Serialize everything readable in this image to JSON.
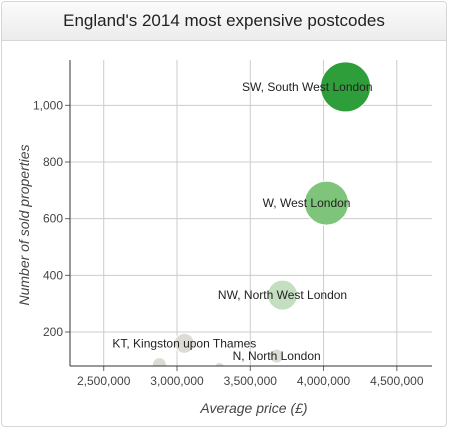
{
  "title": "England's 2014 most expensive postcodes",
  "chart_data": {
    "type": "scatter",
    "title": "England's 2014 most expensive postcodes",
    "xlabel": "Average price (£)",
    "ylabel": "Number of sold properties",
    "xlim": [
      2270000,
      4740000
    ],
    "ylim": [
      80,
      1160
    ],
    "x_ticks": [
      2500000,
      3000000,
      3500000,
      4000000,
      4500000
    ],
    "x_tick_labels": [
      "2,500,000",
      "3,000,000",
      "3,500,000",
      "4,000,000",
      "4,500,000"
    ],
    "y_ticks": [
      200,
      400,
      600,
      800,
      1000
    ],
    "y_tick_labels": [
      "200",
      "400",
      "600",
      "800",
      "1,000"
    ],
    "grid": true,
    "bubbles": [
      {
        "label": "SW, South West London",
        "x": 4150000,
        "y": 1065,
        "size": 25,
        "color": "#2e9e3a",
        "label_anchor": "right-inside"
      },
      {
        "label": "W, West London",
        "x": 4020000,
        "y": 655,
        "size": 22,
        "color": "#7ec47a",
        "label_anchor": "right-inside"
      },
      {
        "label": "NW, North West London",
        "x": 3720000,
        "y": 330,
        "size": 15,
        "color": "#c3dfbf",
        "label_anchor": "center"
      },
      {
        "label": "KT, Kingston upon Thames",
        "x": 3050000,
        "y": 160,
        "size": 10,
        "color": "#dcdcd4",
        "label_anchor": "center"
      },
      {
        "label": "N, North London",
        "x": 3680000,
        "y": 115,
        "size": 7,
        "color": "#dcdcd4",
        "label_anchor": "center"
      },
      {
        "label": "",
        "x": 2880000,
        "y": 85,
        "size": 7,
        "color": "#dcdcd4",
        "label_anchor": "none"
      },
      {
        "label": "",
        "x": 3290000,
        "y": 75,
        "size": 5,
        "color": "#dcdcd4",
        "label_anchor": "none"
      }
    ]
  }
}
